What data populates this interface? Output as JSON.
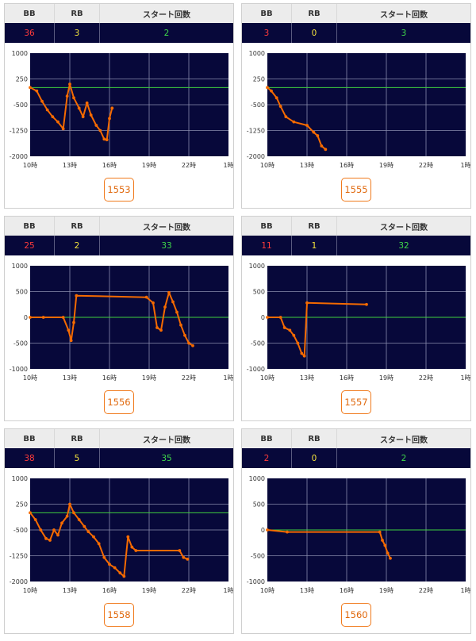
{
  "headers": {
    "bb": "BB",
    "rb": "RB",
    "start": "スタート回数"
  },
  "colors": {
    "bb": "#ff3b3b",
    "rb": "#f3e23b",
    "start": "#3fd84a",
    "line": "#f56a00",
    "baseline": "#3fcf3f",
    "plot_bg": "#07083a"
  },
  "x_tick_labels": [
    "10時",
    "13時",
    "16時",
    "19時",
    "22時",
    "1時"
  ],
  "cards": [
    {
      "machine": "1553",
      "bb": "36",
      "rb": "3",
      "start": "2"
    },
    {
      "machine": "1555",
      "bb": "3",
      "rb": "0",
      "start": "3"
    },
    {
      "machine": "1556",
      "bb": "25",
      "rb": "2",
      "start": "33"
    },
    {
      "machine": "1557",
      "bb": "11",
      "rb": "1",
      "start": "32"
    },
    {
      "machine": "1558",
      "bb": "38",
      "rb": "5",
      "start": "35"
    },
    {
      "machine": "1560",
      "bb": "2",
      "rb": "0",
      "start": "2"
    }
  ],
  "chart_data": [
    {
      "type": "line",
      "ylim": [
        -2000,
        1000
      ],
      "y_ticks": [
        "1000",
        "250",
        "-500",
        "-1250",
        "-2000"
      ],
      "baseline": 0,
      "series": [
        {
          "x": [
            10.0,
            10.5,
            10.9,
            11.3,
            11.7,
            12.1,
            12.5,
            12.8,
            13.0,
            13.3,
            13.7,
            14.0,
            14.3,
            14.6,
            15.0,
            15.3,
            15.6,
            15.8,
            16.0,
            16.2
          ],
          "y": [
            0,
            -100,
            -400,
            -650,
            -850,
            -1000,
            -1200,
            -250,
            100,
            -300,
            -600,
            -850,
            -450,
            -800,
            -1100,
            -1250,
            -1500,
            -1520,
            -900,
            -600
          ]
        }
      ]
    },
    {
      "type": "line",
      "ylim": [
        -2000,
        1000
      ],
      "y_ticks": [
        "1000",
        "250",
        "-500",
        "-1250",
        "-2000"
      ],
      "baseline": 0,
      "series": [
        {
          "x": [
            10.0,
            10.3,
            10.7,
            11.0,
            11.4,
            12.0,
            13.0,
            13.5,
            13.8,
            14.1,
            14.4
          ],
          "y": [
            0,
            -100,
            -300,
            -550,
            -850,
            -1000,
            -1100,
            -1300,
            -1400,
            -1700,
            -1800
          ]
        }
      ]
    },
    {
      "type": "line",
      "ylim": [
        -1000,
        1000
      ],
      "y_ticks": [
        "1000",
        "500",
        "0",
        "-500",
        "-1000"
      ],
      "baseline": 0,
      "series": [
        {
          "x": [
            10.0,
            11.0,
            12.5,
            12.9,
            13.1,
            13.3,
            13.5,
            18.8,
            19.3,
            19.6,
            19.9,
            20.2,
            20.5,
            20.8,
            21.1,
            21.4,
            21.7,
            22.0,
            22.3
          ],
          "y": [
            0,
            0,
            0,
            -250,
            -450,
            -100,
            420,
            390,
            280,
            -200,
            -250,
            200,
            480,
            300,
            100,
            -150,
            -350,
            -500,
            -550
          ]
        }
      ]
    },
    {
      "type": "line",
      "ylim": [
        -1000,
        1000
      ],
      "y_ticks": [
        "1000",
        "500",
        "0",
        "-500",
        "-1000"
      ],
      "baseline": 0,
      "series": [
        {
          "x": [
            10.0,
            11.0,
            11.3,
            11.7,
            12.0,
            12.3,
            12.6,
            12.8,
            13.0,
            17.5
          ],
          "y": [
            0,
            0,
            -200,
            -250,
            -350,
            -500,
            -700,
            -750,
            280,
            250
          ]
        }
      ]
    },
    {
      "type": "line",
      "ylim": [
        -2000,
        1000
      ],
      "y_ticks": [
        "1000",
        "250",
        "-500",
        "-1250",
        "-2000"
      ],
      "baseline": 0,
      "series": [
        {
          "x": [
            10.0,
            10.4,
            10.8,
            11.2,
            11.5,
            11.8,
            12.1,
            12.4,
            12.8,
            13.0,
            13.3,
            13.7,
            14.1,
            14.4,
            14.8,
            15.2,
            15.6,
            16.0,
            16.4,
            16.8,
            17.1,
            17.4,
            17.7,
            18.0,
            21.3,
            21.6,
            21.9
          ],
          "y": [
            0,
            -200,
            -500,
            -750,
            -800,
            -500,
            -650,
            -300,
            -100,
            250,
            0,
            -200,
            -400,
            -550,
            -700,
            -900,
            -1300,
            -1500,
            -1600,
            -1750,
            -1850,
            -700,
            -1000,
            -1100,
            -1100,
            -1300,
            -1350
          ]
        }
      ]
    },
    {
      "type": "line",
      "ylim": [
        -1000,
        1000
      ],
      "y_ticks": [
        "1000",
        "500",
        "0",
        "-500",
        "-1000"
      ],
      "baseline": 0,
      "series": [
        {
          "x": [
            10.0,
            11.5,
            18.5,
            18.7,
            18.9,
            19.1,
            19.3
          ],
          "y": [
            0,
            -40,
            -40,
            -200,
            -300,
            -450,
            -550
          ]
        }
      ]
    }
  ]
}
